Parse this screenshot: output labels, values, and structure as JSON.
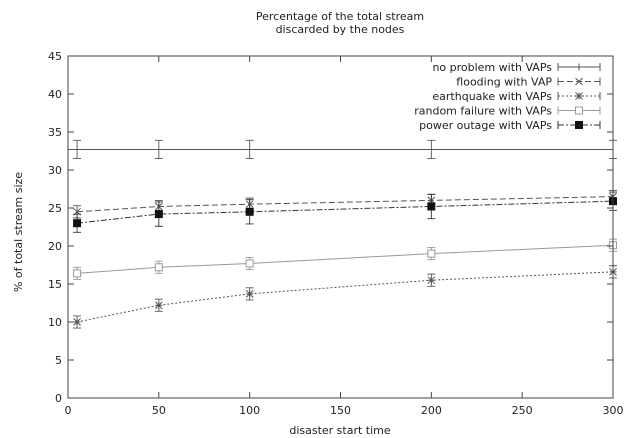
{
  "chart_data": {
    "type": "line",
    "title": "Percentage of the total stream\ndiscarded by the nodes",
    "xlabel": "disaster start time",
    "ylabel": "% of total stream size",
    "xlim": [
      0,
      300
    ],
    "ylim": [
      0,
      45
    ],
    "xticks": [
      0,
      50,
      100,
      150,
      200,
      250,
      300
    ],
    "yticks": [
      0,
      5,
      10,
      15,
      20,
      25,
      30,
      35,
      40,
      45
    ],
    "grid": false,
    "legend_position": "top-right",
    "x": [
      5,
      50,
      100,
      200,
      300
    ],
    "series": [
      {
        "name": "no problem with VAPs",
        "marker": "plus",
        "dash": "solid",
        "color": "#555555",
        "values": [
          32.7,
          32.7,
          32.7,
          32.7,
          32.7
        ],
        "errors": [
          1.2,
          1.2,
          1.2,
          1.2,
          1.2
        ],
        "constant": true
      },
      {
        "name": "flooding with VAP",
        "marker": "x",
        "dash": "longdash",
        "color": "#555555",
        "values": [
          24.5,
          25.2,
          25.5,
          26.0,
          26.5
        ],
        "errors": [
          0.8,
          0.8,
          0.8,
          0.8,
          0.8
        ]
      },
      {
        "name": "earthquake with VAPs",
        "marker": "star",
        "dash": "dotted",
        "color": "#555555",
        "values": [
          10.0,
          12.2,
          13.7,
          15.5,
          16.6
        ],
        "errors": [
          0.8,
          0.8,
          0.8,
          0.8,
          0.8
        ]
      },
      {
        "name": "random failure with VAPs",
        "marker": "square",
        "dash": "solid",
        "color": "#999999",
        "values": [
          16.4,
          17.2,
          17.7,
          19.0,
          20.1
        ],
        "errors": [
          0.8,
          0.8,
          0.8,
          0.8,
          0.8
        ]
      },
      {
        "name": "power outage with VAPs",
        "marker": "filled-square",
        "dash": "dashdot",
        "color": "#333333",
        "values": [
          23.0,
          24.2,
          24.5,
          25.2,
          25.9
        ],
        "errors": [
          1.2,
          1.6,
          1.6,
          1.6,
          1.2
        ]
      }
    ]
  }
}
